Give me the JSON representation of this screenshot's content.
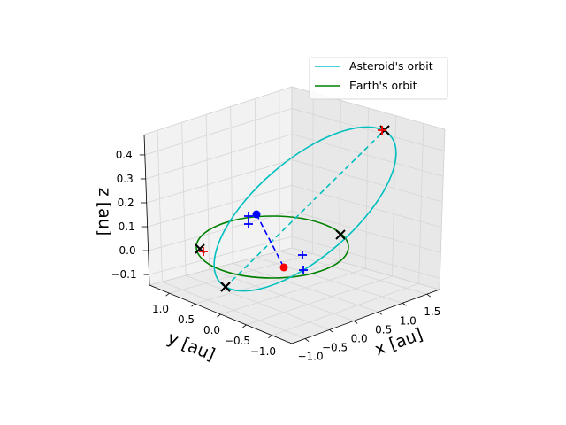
{
  "chart_data": {
    "type": "line3d",
    "axes": {
      "x": {
        "label": "x [au]",
        "ticks": [
          "−1.0",
          "−0.5",
          "0.0",
          "0.5",
          "1.0",
          "1.5"
        ]
      },
      "y": {
        "label": "y [au]",
        "ticks": [
          "1.0",
          "0.5",
          "0.0",
          "−0.5",
          "−1.0"
        ]
      },
      "z": {
        "label": "z [au]",
        "ticks": [
          "0.4",
          "0.3",
          "0.2",
          "0.1",
          "0.0",
          "−0.1"
        ]
      }
    },
    "grid": true,
    "legend": {
      "placement": "top-right",
      "entries": [
        {
          "label": "Asteroid's orbit",
          "color": "#17becf"
        },
        {
          "label": "Earth's orbit",
          "color": "#008000"
        }
      ]
    },
    "series": [
      {
        "name": "Asteroid's orbit",
        "color": "#00bfbf",
        "shape": "ellipse"
      },
      {
        "name": "Earth's orbit",
        "color": "#008000",
        "shape": "circle"
      }
    ],
    "markers": {
      "x_marks": 5,
      "plus_marks": 6,
      "points": [
        {
          "color": "#0000ff"
        },
        {
          "color": "#ff0000"
        }
      ]
    }
  }
}
